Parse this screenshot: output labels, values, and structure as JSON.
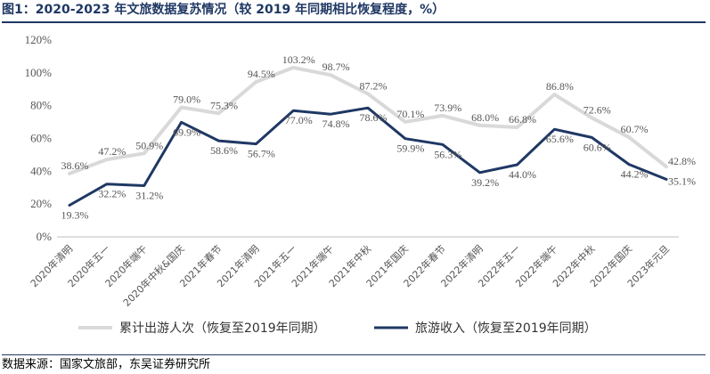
{
  "title": "图1：2020-2023 年文旅数据复苏情况（较 2019 年同期相比恢复程度，%）",
  "source": "数据来源：国家文旅部，东吴证券研究所",
  "chart_data": {
    "type": "line",
    "categories": [
      "2020年清明",
      "2020年五一",
      "2020年端午",
      "2020年中秋&国庆",
      "2021年春节",
      "2021年清明",
      "2021年五一",
      "2021年端午",
      "2021年中秋",
      "2021年国庆",
      "2022年春节",
      "2022年清明",
      "2022年五一",
      "2022年端午",
      "2022年中秋",
      "2022年国庆",
      "2023年元旦"
    ],
    "y_ticks": [
      "0%",
      "20%",
      "40%",
      "60%",
      "80%",
      "100%",
      "120%"
    ],
    "ylim": [
      0,
      120
    ],
    "grid": false,
    "legend_position": "bottom",
    "series": [
      {
        "name": "累计出游人次（恢复至2019年同期）",
        "color": "#d9d9d9",
        "values": [
          38.6,
          47.2,
          50.9,
          79.0,
          75.3,
          94.5,
          103.2,
          98.7,
          87.2,
          70.1,
          73.9,
          68.0,
          66.8,
          86.8,
          72.6,
          60.7,
          42.8
        ],
        "labels": [
          "38.6%",
          "47.2%",
          "50.9%",
          "79.0%",
          "75.3%",
          "94.5%",
          "103.2%",
          "98.7%",
          "87.2%",
          "70.1%",
          "73.9%",
          "68.0%",
          "66.8%",
          "86.8%",
          "72.6%",
          "60.7%",
          "42.8%"
        ]
      },
      {
        "name": "旅游收入（恢复至2019年同期）",
        "color": "#1f3864",
        "values": [
          19.3,
          32.2,
          31.2,
          69.9,
          58.6,
          56.7,
          77.0,
          74.8,
          78.6,
          59.9,
          56.3,
          39.2,
          44.0,
          65.6,
          60.6,
          44.2,
          35.1
        ],
        "labels": [
          "19.3%",
          "32.2%",
          "31.2%",
          "69.9%",
          "58.6%",
          "56.7%",
          "77.0%",
          "74.8%",
          "78.6%",
          "59.9%",
          "56.3%",
          "39.2%",
          "44.0%",
          "65.6%",
          "60.6%",
          "44.2%",
          "35.1%"
        ]
      }
    ]
  }
}
